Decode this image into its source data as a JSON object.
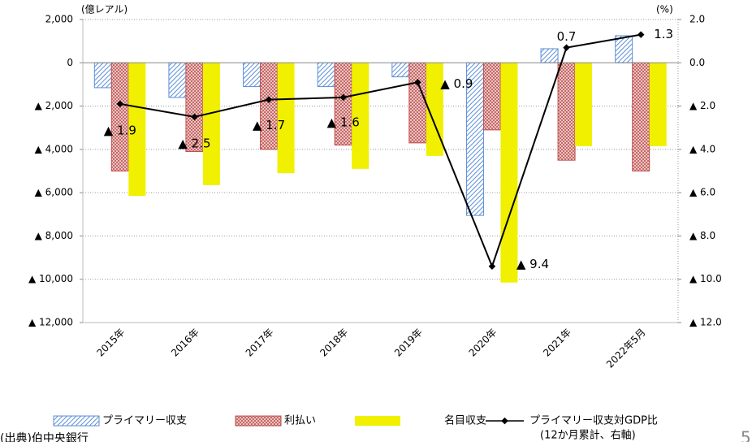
{
  "chart_data": {
    "type": "bar",
    "y_axis_label": "(億レアル)",
    "y2_axis_label": "(%)",
    "categories": [
      "2015年",
      "2016年",
      "2017年",
      "2018年",
      "2019年",
      "2020年",
      "2021年",
      "2022年5月"
    ],
    "series": [
      {
        "name": "プライマリー収支",
        "color": "#5b8fd6",
        "pattern": "hatch",
        "values": [
          -1150,
          -1600,
          -1100,
          -1100,
          -650,
          -7050,
          650,
          1250
        ]
      },
      {
        "name": "利払い",
        "color": "#c0504d",
        "pattern": "crosshatch",
        "values": [
          -5000,
          -4100,
          -4000,
          -3800,
          -3700,
          -3100,
          -4500,
          -5000
        ]
      },
      {
        "name": "名目収支",
        "color": "#f0f000",
        "values": [
          -6150,
          -5650,
          -5100,
          -4900,
          -4300,
          -10150,
          -3850,
          -3850
        ]
      },
      {
        "name": "プライマリー収支対GDP比",
        "type": "line",
        "axis": "y2",
        "color": "#000000",
        "values": [
          -1.9,
          -2.5,
          -1.7,
          -1.6,
          -0.9,
          -9.4,
          0.7,
          1.3
        ],
        "value_labels": [
          "▲ 1.9",
          "▲ 2.5",
          "▲ 1.7",
          "▲ 1.6",
          "▲ 0.9",
          "▲ 9.4",
          "0.7",
          "1.3"
        ]
      }
    ],
    "legend_note": "(12か月累計、右軸)",
    "ylim": [
      -12000,
      2000
    ],
    "yticks": [
      {
        "value": 2000,
        "label": "2,000"
      },
      0,
      {
        "value": -2000,
        "label": "▲ 2,000"
      },
      {
        "value": -4000,
        "label": "▲ 4,000"
      },
      {
        "value": -6000,
        "label": "▲ 6,000"
      },
      {
        "value": -8000,
        "label": "▲ 8,000"
      },
      {
        "value": -10000,
        "label": "▲ 10,000"
      },
      {
        "value": -12000,
        "label": "▲ 12,000"
      }
    ],
    "y2lim": [
      -12,
      2
    ],
    "y2ticks": [
      {
        "value": 2,
        "label": "2.0"
      },
      {
        "value": 0,
        "label": "0.0"
      },
      {
        "value": -2,
        "label": "▲ 2.0"
      },
      {
        "value": -4,
        "label": "▲ 4.0"
      },
      {
        "value": -6,
        "label": "▲ 6.0"
      },
      {
        "value": -8,
        "label": "▲ 8.0"
      },
      {
        "value": -10,
        "label": "▲ 10.0"
      },
      {
        "value": -12,
        "label": "▲ 12.0"
      }
    ],
    "grid": true
  },
  "source": "(出典)伯中央銀行",
  "page_number": "5"
}
